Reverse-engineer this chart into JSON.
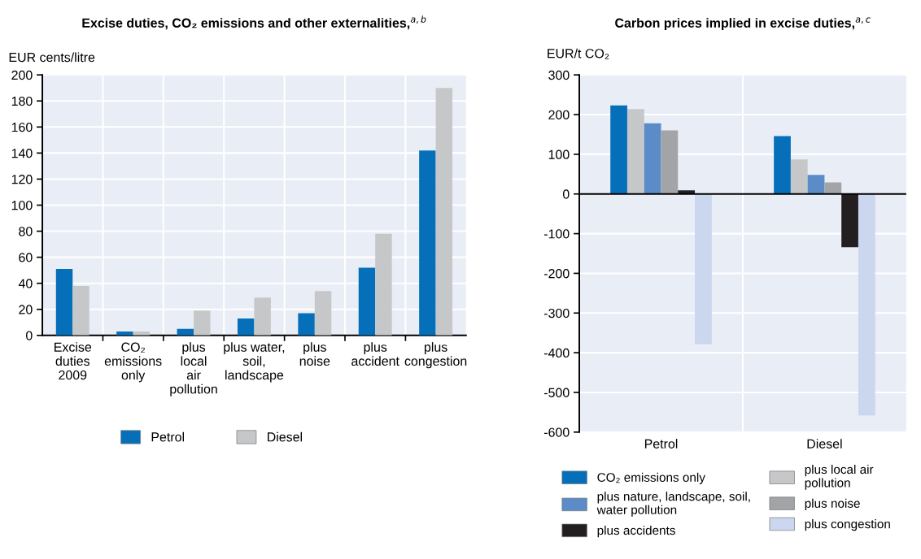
{
  "chart_data": [
    {
      "type": "bar",
      "title": "Excise duties, CO₂ emissions and other externalities,$^{a,b}$",
      "ylabel": "EUR cents/litre",
      "categories": [
        "Excise\nduties\n2009",
        "CO₂\nemissions\nonly",
        "plus\nlocal\nair\npollution",
        "plus water,\nsoil,\nlandscape",
        "plus\nnoise",
        "plus\naccident",
        "plus\ncongestion"
      ],
      "series": [
        {
          "name": "Petrol",
          "color": "#0570b9",
          "values": [
            51,
            3,
            5,
            13,
            17,
            52,
            142
          ]
        },
        {
          "name": "Diesel",
          "color": "#c6c7c9",
          "values": [
            38,
            3,
            19,
            29,
            34,
            78,
            190
          ]
        }
      ],
      "ylim": [
        0,
        200
      ],
      "yticks": [
        0,
        20,
        40,
        60,
        80,
        100,
        120,
        140,
        160,
        180,
        200
      ],
      "grid": true,
      "legend": "bottom"
    },
    {
      "type": "bar",
      "title": "Carbon prices implied in excise duties,$^{a,c}$",
      "ylabel": "EUR/t CO₂",
      "categories": [
        "Petrol",
        "Diesel"
      ],
      "series": [
        {
          "name": "CO₂ emissions only",
          "color": "#0570b9",
          "values": [
            223,
            146
          ]
        },
        {
          "name": "plus local air\npollution",
          "color": "#c6c7c9",
          "values": [
            214,
            87
          ]
        },
        {
          "name": "plus nature, landscape, soil,\nwater pollution",
          "color": "#5b8cc8",
          "values": [
            178,
            48
          ]
        },
        {
          "name": "plus noise",
          "color": "#a3a4a8",
          "values": [
            160,
            29
          ]
        },
        {
          "name": "plus accidents",
          "color": "#231f20",
          "values": [
            9,
            -134
          ]
        },
        {
          "name": "plus congestion",
          "color": "#cbd7ee",
          "values": [
            -379,
            -558
          ]
        }
      ],
      "ylim": [
        -600,
        300
      ],
      "yticks": [
        -600,
        -500,
        -400,
        -300,
        -200,
        -100,
        0,
        100,
        200,
        300
      ],
      "grid": true,
      "legend": "bottom"
    }
  ]
}
